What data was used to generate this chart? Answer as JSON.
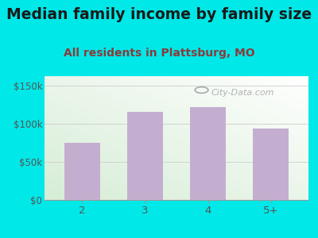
{
  "categories": [
    "2",
    "3",
    "4",
    "5+"
  ],
  "values": [
    75000,
    115000,
    122000,
    93000
  ],
  "bar_color": "#c4aed0",
  "title": "Median family income by family size",
  "subtitle": "All residents in Plattsburg, MO",
  "title_color": "#1a1a1a",
  "subtitle_color": "#8b3a3a",
  "ylabel_ticks": [
    0,
    50000,
    100000,
    150000
  ],
  "tick_labels": [
    "$0",
    "$50k",
    "$100k",
    "$150k"
  ],
  "ylim": [
    0,
    162000
  ],
  "background_outer": "#00e8e8",
  "gradient_top_left": "#d6edd6",
  "gradient_bottom_right": "#ffffff",
  "watermark": "City-Data.com",
  "title_fontsize": 13.5,
  "subtitle_fontsize": 10
}
